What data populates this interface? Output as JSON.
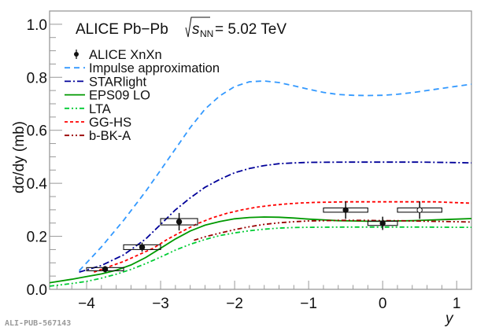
{
  "chart_data": {
    "type": "scatter",
    "title": "ALICE Pb−Pb",
    "energy_label": {
      "sqrt": "s",
      "sub": "NN",
      "value": "= 5.02 TeV"
    },
    "xlabel": "y",
    "ylabel": "dσ/dy (mb)",
    "xlim": [
      -4.5,
      1.2
    ],
    "ylim": [
      0.0,
      1.05
    ],
    "x_ticks": [
      -4,
      -3,
      -2,
      -1,
      0,
      1
    ],
    "x_tick_labels": [
      "−4",
      "−3",
      "−2",
      "−1",
      "0",
      "1"
    ],
    "y_ticks": [
      0.0,
      0.2,
      0.4,
      0.6,
      0.8,
      1.0
    ],
    "y_tick_labels": [
      "0.0",
      "0.2",
      "0.4",
      "0.6",
      "0.8",
      "1.0"
    ],
    "grid": false,
    "legend_position": "top-left",
    "watermark": "ALI-PUB-567143",
    "data_points": {
      "name": "ALICE XnXn",
      "points": [
        {
          "x": -3.75,
          "y": 0.076,
          "stat_err": 0.012,
          "sys_lo": 0.07,
          "sys_hi": 0.082,
          "x_lo": -4.0,
          "x_hi": -3.5,
          "marker": "filled"
        },
        {
          "x": -3.25,
          "y": 0.159,
          "stat_err": 0.017,
          "sys_lo": 0.15,
          "sys_hi": 0.168,
          "x_lo": -3.5,
          "x_hi": -3.0,
          "marker": "filled"
        },
        {
          "x": -2.75,
          "y": 0.255,
          "stat_err": 0.033,
          "sys_lo": 0.243,
          "sys_hi": 0.267,
          "x_lo": -3.0,
          "x_hi": -2.5,
          "marker": "filled"
        },
        {
          "x": -0.5,
          "y": 0.299,
          "stat_err": 0.033,
          "sys_lo": 0.291,
          "sys_hi": 0.307,
          "x_lo": -0.8,
          "x_hi": -0.2,
          "marker": "filled"
        },
        {
          "x": 0.0,
          "y": 0.249,
          "stat_err": 0.025,
          "sys_lo": 0.241,
          "sys_hi": 0.257,
          "x_lo": -0.2,
          "x_hi": 0.2,
          "marker": "filled"
        },
        {
          "x": 0.5,
          "y": 0.299,
          "stat_err": 0.033,
          "sys_lo": 0.291,
          "sys_hi": 0.307,
          "x_lo": 0.2,
          "x_hi": 0.8,
          "marker": "open"
        }
      ]
    },
    "series": [
      {
        "name": "Impulse approximation",
        "color": "#3399ff",
        "style": "dashed",
        "x": [
          -4.1,
          -3.8,
          -3.5,
          -3.2,
          -3.0,
          -2.8,
          -2.6,
          -2.4,
          -2.2,
          -2.0,
          -1.8,
          -1.6,
          -1.4,
          -1.2,
          -1.0,
          -0.8,
          -0.6,
          -0.4,
          -0.2,
          0.0,
          0.2,
          0.4,
          0.6,
          0.8,
          1.0,
          1.2
        ],
        "y": [
          0.07,
          0.16,
          0.26,
          0.37,
          0.45,
          0.53,
          0.61,
          0.68,
          0.73,
          0.765,
          0.783,
          0.786,
          0.78,
          0.768,
          0.755,
          0.743,
          0.735,
          0.732,
          0.731,
          0.732,
          0.736,
          0.742,
          0.75,
          0.758,
          0.766,
          0.774
        ]
      },
      {
        "name": "STARlight",
        "color": "#000099",
        "style": "dashdot",
        "x": [
          -4.1,
          -3.8,
          -3.5,
          -3.2,
          -3.0,
          -2.8,
          -2.6,
          -2.4,
          -2.2,
          -2.0,
          -1.8,
          -1.6,
          -1.4,
          -1.2,
          -1.0,
          -0.5,
          0.0,
          0.5,
          1.0,
          1.2
        ],
        "y": [
          0.065,
          0.09,
          0.13,
          0.19,
          0.245,
          0.3,
          0.345,
          0.385,
          0.415,
          0.44,
          0.456,
          0.467,
          0.474,
          0.477,
          0.479,
          0.48,
          0.48,
          0.48,
          0.478,
          0.477
        ]
      },
      {
        "name": "EPS09 LO",
        "color": "#009900",
        "style": "solid",
        "x": [
          -4.5,
          -4.2,
          -4.0,
          -3.8,
          -3.6,
          -3.4,
          -3.2,
          -3.0,
          -2.8,
          -2.6,
          -2.4,
          -2.2,
          -2.0,
          -1.8,
          -1.6,
          -1.4,
          -1.2,
          -1.0,
          -0.8,
          -0.6,
          -0.4,
          -0.2,
          0.0,
          0.2,
          0.4,
          0.6,
          0.8,
          1.0,
          1.2
        ],
        "y": [
          0.025,
          0.038,
          0.048,
          0.058,
          0.072,
          0.092,
          0.12,
          0.155,
          0.19,
          0.22,
          0.242,
          0.256,
          0.266,
          0.271,
          0.273,
          0.272,
          0.269,
          0.265,
          0.262,
          0.259,
          0.258,
          0.257,
          0.257,
          0.258,
          0.259,
          0.261,
          0.263,
          0.265,
          0.267
        ]
      },
      {
        "name": "LTA",
        "color": "#00cc33",
        "style": "dashdotdot",
        "x": [
          -4.5,
          -4.2,
          -4.0,
          -3.8,
          -3.6,
          -3.4,
          -3.2,
          -3.0,
          -2.8,
          -2.6,
          -2.4,
          -2.2,
          -2.0,
          -1.8,
          -1.6,
          -1.4,
          -1.2,
          -1.0,
          -0.5,
          0.0,
          0.5,
          1.0,
          1.2
        ],
        "y": [
          0.012,
          0.022,
          0.03,
          0.042,
          0.057,
          0.075,
          0.097,
          0.122,
          0.148,
          0.17,
          0.188,
          0.203,
          0.213,
          0.221,
          0.227,
          0.231,
          0.233,
          0.234,
          0.235,
          0.235,
          0.235,
          0.234,
          0.234
        ]
      },
      {
        "name": "GG-HS",
        "color": "#ff0000",
        "style": "dotted",
        "x": [
          -3.9,
          -3.7,
          -3.5,
          -3.3,
          -3.1,
          -2.9,
          -2.7,
          -2.5,
          -2.3,
          -2.1,
          -1.9,
          -1.7,
          -1.5,
          -1.3,
          -1.1,
          -0.9,
          -0.7,
          -0.5,
          -0.3,
          -0.1,
          0.1,
          0.3,
          0.5,
          0.7,
          0.9,
          1.1,
          1.2
        ],
        "y": [
          0.065,
          0.085,
          0.105,
          0.13,
          0.155,
          0.19,
          0.22,
          0.248,
          0.27,
          0.287,
          0.3,
          0.31,
          0.317,
          0.322,
          0.326,
          0.328,
          0.329,
          0.33,
          0.33,
          0.33,
          0.33,
          0.33,
          0.33,
          0.33,
          0.328,
          0.326,
          0.325
        ]
      },
      {
        "name": "b-BK-A",
        "color": "#990000",
        "style": "dashdotdot",
        "x": [
          -2.55,
          -2.4,
          -2.2,
          -2.0,
          -1.8,
          -1.6,
          -1.4,
          -1.2,
          -1.0,
          -0.8,
          -0.6,
          -0.4,
          -0.2,
          0.0,
          0.2,
          0.4,
          0.6,
          0.8,
          1.0,
          1.2
        ],
        "y": [
          0.185,
          0.198,
          0.212,
          0.225,
          0.236,
          0.245,
          0.251,
          0.255,
          0.258,
          0.259,
          0.26,
          0.26,
          0.26,
          0.259,
          0.259,
          0.258,
          0.257,
          0.256,
          0.255,
          0.254
        ]
      }
    ],
    "legend": [
      {
        "label": "ALICE XnXn",
        "kind": "marker"
      },
      {
        "label": "Impulse approximation",
        "kind": "line",
        "series": 0
      },
      {
        "label": "STARlight",
        "kind": "line",
        "series": 1
      },
      {
        "label": "EPS09 LO",
        "kind": "line",
        "series": 2
      },
      {
        "label": "LTA",
        "kind": "line",
        "series": 3
      },
      {
        "label": "GG-HS",
        "kind": "line",
        "series": 4
      },
      {
        "label": "b-BK-A",
        "kind": "line",
        "series": 5
      }
    ]
  }
}
